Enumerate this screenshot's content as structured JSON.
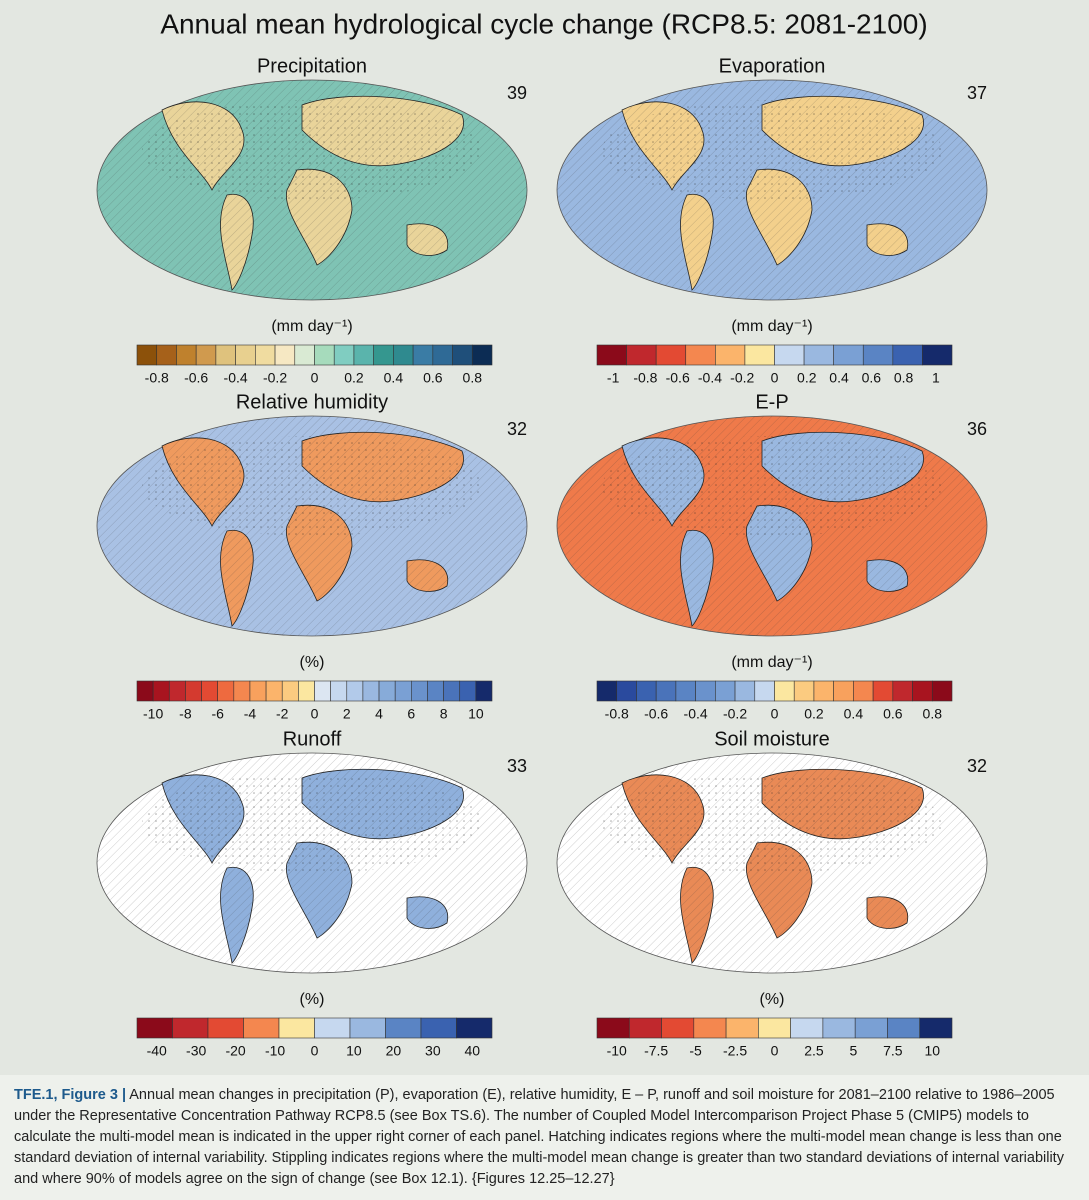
{
  "title": "Annual mean hydrological cycle change (RCP8.5: 2081-2100)",
  "panels": [
    {
      "title": "Precipitation",
      "models": "39",
      "unit": "(mm day⁻¹)",
      "ocean": "#7fc3b4",
      "land": "#e9d49a",
      "colors": [
        "#8c510a",
        "#a6611a",
        "#bf812d",
        "#d09a4e",
        "#dfc27d",
        "#e8d08f",
        "#f0dca0",
        "#f6e8c3",
        "#d9ead3",
        "#a6dbbc",
        "#80cdc1",
        "#5ab4ac",
        "#35978f",
        "#2f8a8f",
        "#3a7ca5",
        "#2f6a96",
        "#1f4f7a",
        "#0c2c54"
      ],
      "ticks": [
        "-0.8",
        "-0.6",
        "-0.4",
        "-0.2",
        "0",
        "0.2",
        "0.4",
        "0.6",
        "0.8"
      ]
    },
    {
      "title": "Evaporation",
      "models": "37",
      "unit": "(mm day⁻¹)",
      "ocean": "#9ab8e0",
      "land": "#f3d08c",
      "colors": [
        "#8b0a1a",
        "#c0282d",
        "#e34a33",
        "#f4874f",
        "#fbb46b",
        "#fbe7a0",
        "#c6d8ef",
        "#9ab8e0",
        "#7aa0d4",
        "#5a84c4",
        "#3a62b0",
        "#152a6b"
      ],
      "ticks": [
        "-1",
        "-0.8",
        "-0.6",
        "-0.4",
        "-0.2",
        "0",
        "0.2",
        "0.4",
        "0.6",
        "0.8",
        "1"
      ]
    },
    {
      "title": "Relative humidity",
      "models": "32",
      "unit": "(%)",
      "ocean": "#a9c1e4",
      "land": "#ef9a5e",
      "colors": [
        "#8b0a1a",
        "#a8141f",
        "#c0282d",
        "#d43a2f",
        "#e34a33",
        "#ee6a3f",
        "#f4874f",
        "#f8a15d",
        "#fbb46b",
        "#fbcb80",
        "#fbe7a0",
        "#dce6f2",
        "#c6d8ef",
        "#b2caea",
        "#9ab8e0",
        "#87abd9",
        "#7aa0d4",
        "#6a92cc",
        "#5a84c4",
        "#4a73ba",
        "#3a62b0",
        "#152a6b"
      ],
      "ticks": [
        "-10",
        "-8",
        "-6",
        "-4",
        "-2",
        "0",
        "2",
        "4",
        "6",
        "8",
        "10"
      ]
    },
    {
      "title": "E-P",
      "models": "36",
      "unit": "(mm day⁻¹)",
      "ocean": "#ef7a4a",
      "land": "#9ab8e0",
      "colors": [
        "#152a6b",
        "#2a4a9e",
        "#3a62b0",
        "#4a73ba",
        "#5a84c4",
        "#6a92cc",
        "#7aa0d4",
        "#9ab8e0",
        "#c6d8ef",
        "#fbe7a0",
        "#fbcb80",
        "#fbb46b",
        "#f8a15d",
        "#f4874f",
        "#e34a33",
        "#c0282d",
        "#a8141f",
        "#8b0a1a"
      ],
      "ticks": [
        "-0.8",
        "-0.6",
        "-0.4",
        "-0.2",
        "0",
        "0.2",
        "0.4",
        "0.6",
        "0.8"
      ]
    },
    {
      "title": "Runoff",
      "models": "33",
      "unit": "(%)",
      "ocean": "#ffffff",
      "land": "#8fb0dc",
      "colors": [
        "#8b0a1a",
        "#c0282d",
        "#e34a33",
        "#f4874f",
        "#fbe7a0",
        "#c6d8ef",
        "#9ab8e0",
        "#5a84c4",
        "#3a62b0",
        "#152a6b"
      ],
      "ticks": [
        "-40",
        "-30",
        "-20",
        "-10",
        "0",
        "10",
        "20",
        "30",
        "40"
      ]
    },
    {
      "title": "Soil moisture",
      "models": "32",
      "unit": "(%)",
      "ocean": "#ffffff",
      "land": "#e98a56",
      "colors": [
        "#8b0a1a",
        "#c0282d",
        "#e34a33",
        "#f4874f",
        "#fbb46b",
        "#fbe7a0",
        "#c6d8ef",
        "#9ab8e0",
        "#7aa0d4",
        "#5a84c4",
        "#152a6b"
      ],
      "ticks": [
        "-10",
        "-7.5",
        "-5",
        "-2.5",
        "0",
        "2.5",
        "5",
        "7.5",
        "10"
      ]
    }
  ],
  "caption": {
    "label": "TFE.1, Figure 3 |",
    "text": "Annual mean changes in precipitation (P), evaporation (E), relative humidity, E – P, runoff and soil moisture for 2081–2100 relative to 1986–2005 under the Representative Concentration Pathway RCP8.5 (see Box TS.6). The number of Coupled Model Intercomparison Project Phase 5 (CMIP5) models to calculate the multi-model mean is indicated in the upper right corner of each panel. Hatching indicates regions where the multi-model mean change is less than one standard deviation of internal variability. Stippling indicates regions where the multi-model mean change is greater than two standard deviations of internal variability and where 90% of models agree on the sign of change (see Box 12.1). {Figures 12.25–12.27}"
  }
}
